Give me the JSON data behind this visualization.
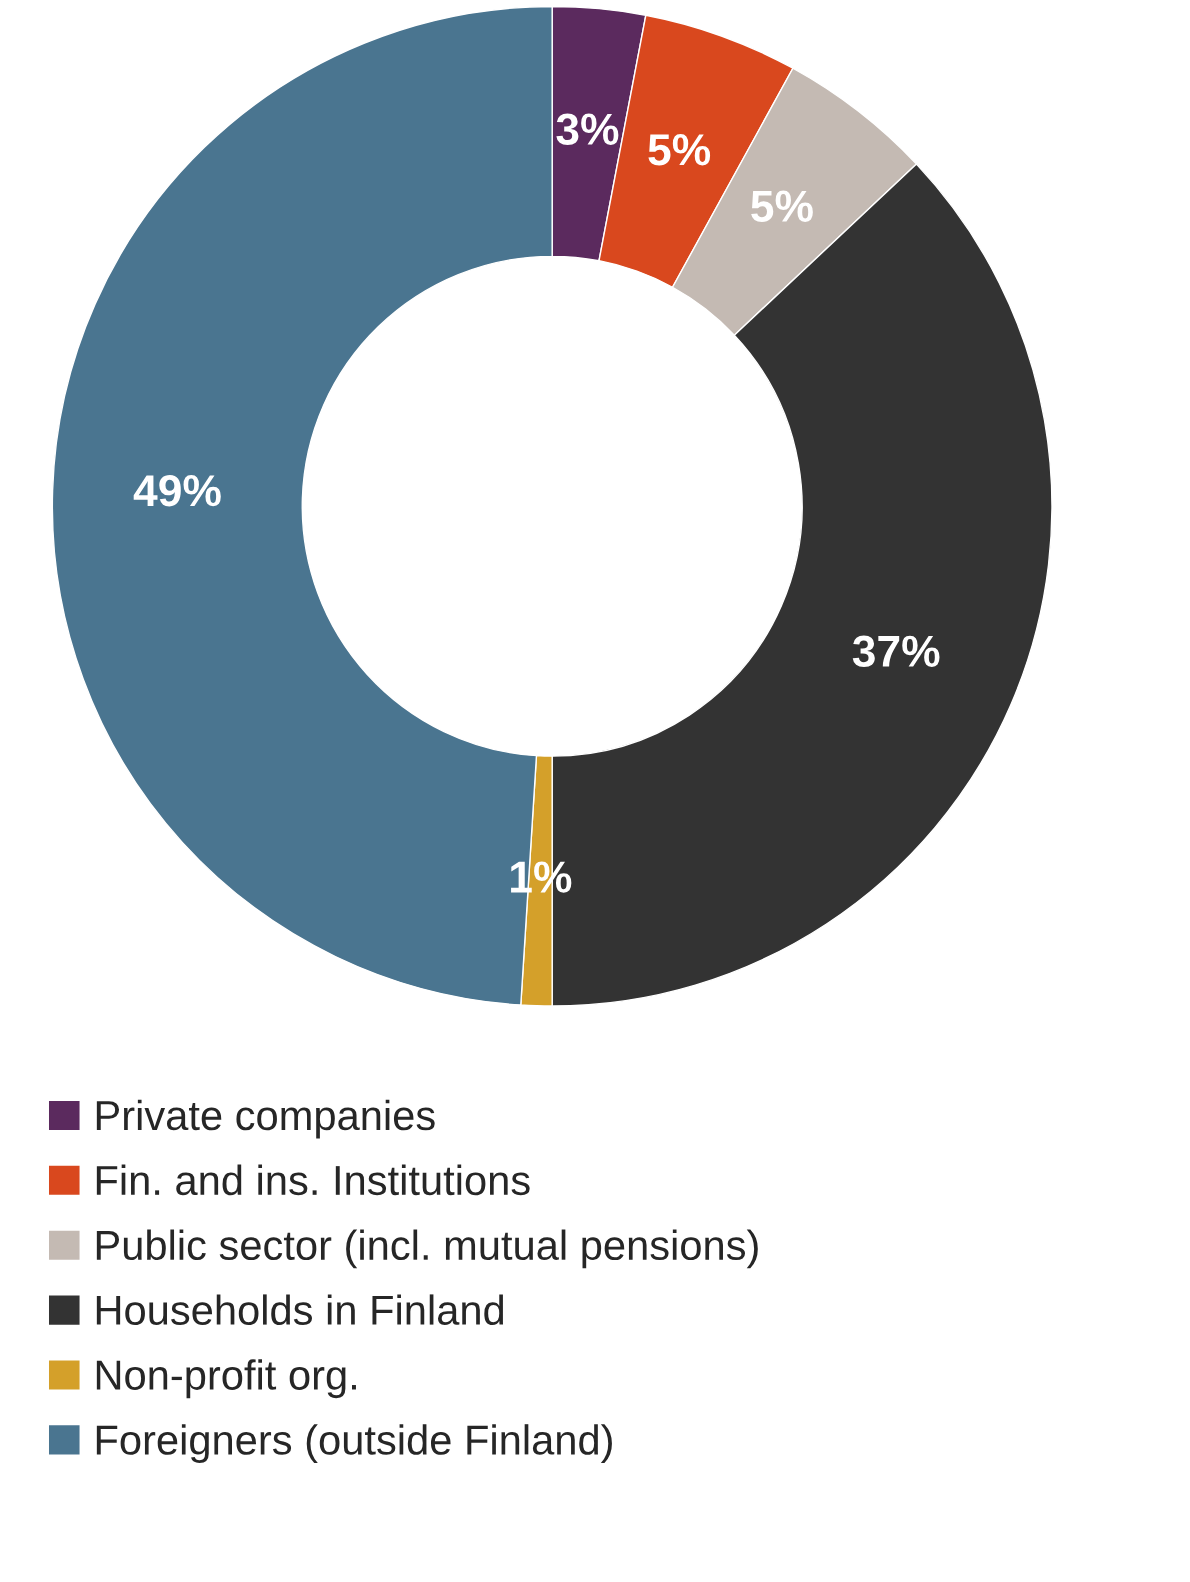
{
  "chart_data": {
    "type": "donut",
    "categories": [
      "Private companies",
      "Fin. and ins. Institutions",
      "Public sector (incl. mutual pensions)",
      "Households in Finland",
      "Non-profit org.",
      "Foreigners (outside Finland)"
    ],
    "values": [
      3,
      5,
      5,
      37,
      1,
      49
    ],
    "colors": [
      "#5b2a5e",
      "#d9481e",
      "#c4bab3",
      "#333333",
      "#d4a02a",
      "#4a7590"
    ],
    "value_labels": [
      "3%",
      "5%",
      "5%",
      "37%",
      "1%",
      "49%"
    ],
    "legend": "bottom left"
  }
}
